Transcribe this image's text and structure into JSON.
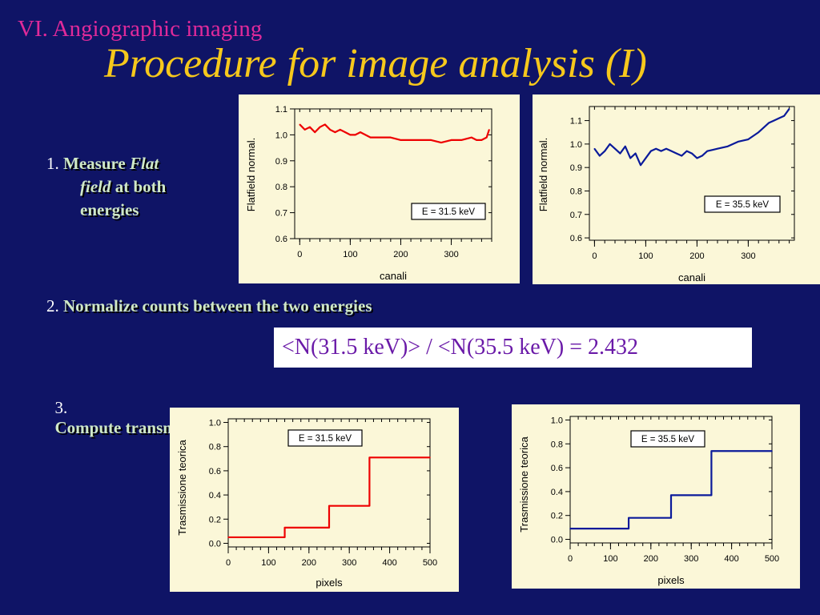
{
  "slide": {
    "section": "VI. Angiographic imaging",
    "title": "Procedure for image analysis (I)"
  },
  "steps": [
    {
      "num": "1.",
      "text_a": "Measure",
      "text_b": "Flat",
      "text_c": "field",
      "text_d": "at both",
      "text_e": "energies"
    },
    {
      "num": "2.",
      "text": "Normalize counts between the two energies"
    },
    {
      "num": "3.",
      "text": "Compute transmission in  PMMA + Al"
    }
  ],
  "formula": "<N(31.5 keV)> / <N(35.5 keV) = 2.432",
  "colors": {
    "background": "#0f1466",
    "title": "#f6c81c",
    "section": "#e02a9a",
    "red": "#ee0000",
    "blue": "#0a1a9a",
    "panel": "#fbf7d8"
  },
  "chart_data": [
    {
      "type": "line",
      "id": "flatfield-31",
      "xlabel": "canali",
      "ylabel": "Flatfield normal.",
      "xlim": [
        -10,
        380
      ],
      "ylim": [
        0.6,
        1.1
      ],
      "xticks": [
        0,
        100,
        200,
        300
      ],
      "yticks": [
        0.6,
        0.7,
        0.8,
        0.9,
        1.0,
        1.1
      ],
      "ytick_labels": [
        "0.6",
        "0.7",
        "0.8",
        "0.9",
        "1.0",
        "1.1"
      ],
      "legend": "E = 31.5 keV",
      "color": "#ee0000",
      "series": [
        {
          "x": [
            0,
            10,
            20,
            30,
            40,
            50,
            60,
            70,
            80,
            90,
            100,
            110,
            120,
            140,
            160,
            180,
            200,
            220,
            240,
            260,
            280,
            300,
            320,
            340,
            350,
            360,
            370,
            375
          ],
          "y": [
            1.04,
            1.02,
            1.03,
            1.01,
            1.03,
            1.04,
            1.02,
            1.01,
            1.02,
            1.01,
            1.0,
            1.0,
            1.01,
            0.99,
            0.99,
            0.99,
            0.98,
            0.98,
            0.98,
            0.98,
            0.97,
            0.98,
            0.98,
            0.99,
            0.98,
            0.98,
            0.99,
            1.02
          ]
        }
      ]
    },
    {
      "type": "line",
      "id": "flatfield-35",
      "xlabel": "canali",
      "ylabel": "Flatfield normal.",
      "xlim": [
        -10,
        390
      ],
      "ylim": [
        0.59,
        1.16
      ],
      "xticks": [
        0,
        100,
        200,
        300
      ],
      "yticks": [
        0.6,
        0.7,
        0.8,
        0.9,
        1.0,
        1.1
      ],
      "ytick_labels": [
        "0.6",
        "0.7",
        "0.8",
        "0.9",
        "1.0",
        "1.1"
      ],
      "legend": "E = 35.5 keV",
      "color": "#0a1a9a",
      "series": [
        {
          "x": [
            0,
            10,
            20,
            30,
            40,
            50,
            60,
            70,
            80,
            90,
            100,
            110,
            120,
            130,
            140,
            150,
            160,
            170,
            180,
            190,
            200,
            210,
            220,
            240,
            260,
            280,
            300,
            320,
            340,
            350,
            360,
            370,
            380
          ],
          "y": [
            0.98,
            0.95,
            0.97,
            1.0,
            0.98,
            0.96,
            0.99,
            0.94,
            0.96,
            0.91,
            0.94,
            0.97,
            0.98,
            0.97,
            0.98,
            0.97,
            0.96,
            0.95,
            0.97,
            0.96,
            0.94,
            0.95,
            0.97,
            0.98,
            0.99,
            1.01,
            1.02,
            1.05,
            1.09,
            1.1,
            1.11,
            1.12,
            1.15
          ]
        }
      ]
    },
    {
      "type": "line",
      "id": "transmission-31",
      "xlabel": "pixels",
      "ylabel": "Trasmissione teorica",
      "xlim": [
        0,
        500
      ],
      "ylim": [
        -0.03,
        1.03
      ],
      "xticks": [
        0,
        100,
        200,
        300,
        400,
        500
      ],
      "yticks": [
        0.0,
        0.2,
        0.4,
        0.6,
        0.8,
        1.0
      ],
      "ytick_labels": [
        "0.0",
        "0.2",
        "0.4",
        "0.6",
        "0.8",
        "1.0"
      ],
      "legend": "E = 31.5 keV",
      "color": "#ee0000",
      "series": [
        {
          "x": [
            0,
            140,
            140,
            250,
            250,
            350,
            350,
            500
          ],
          "y": [
            0.05,
            0.05,
            0.13,
            0.13,
            0.31,
            0.31,
            0.71,
            0.71
          ]
        }
      ]
    },
    {
      "type": "line",
      "id": "transmission-35",
      "xlabel": "pixels",
      "ylabel": "Trasmissione teorica",
      "xlim": [
        0,
        500
      ],
      "ylim": [
        -0.03,
        1.03
      ],
      "xticks": [
        0,
        100,
        200,
        300,
        400,
        500
      ],
      "yticks": [
        0.0,
        0.2,
        0.4,
        0.6,
        0.8,
        1.0
      ],
      "ytick_labels": [
        "0.0",
        "0.2",
        "0.4",
        "0.6",
        "0.8",
        "1.0"
      ],
      "legend": "E = 35.5 keV",
      "color": "#0a1a9a",
      "series": [
        {
          "x": [
            0,
            145,
            145,
            250,
            250,
            350,
            350,
            500
          ],
          "y": [
            0.09,
            0.09,
            0.18,
            0.18,
            0.37,
            0.37,
            0.74,
            0.74
          ]
        }
      ]
    }
  ]
}
